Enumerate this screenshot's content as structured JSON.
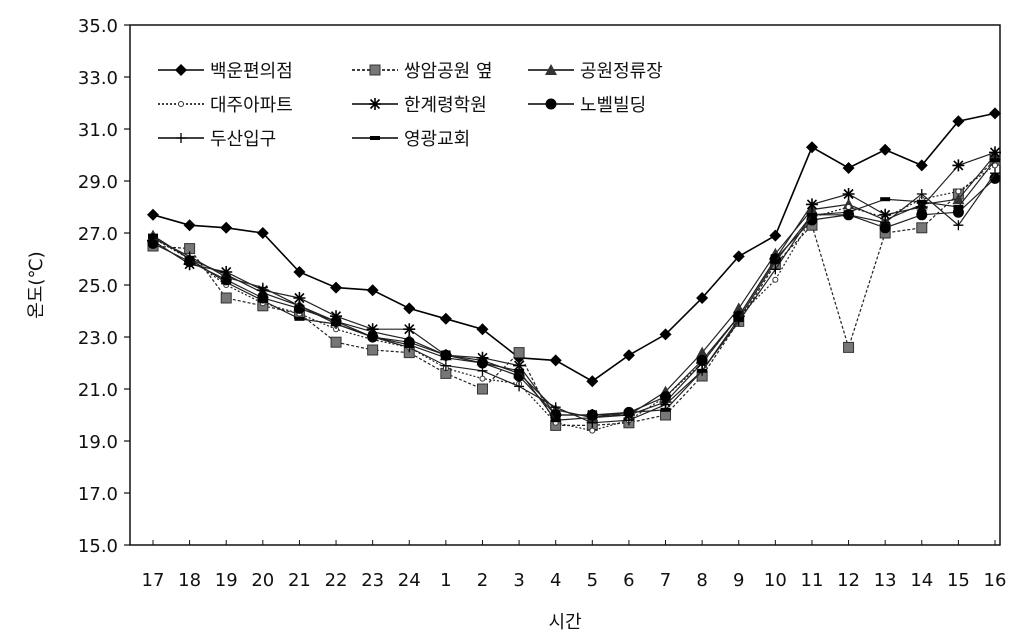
{
  "chart_data": {
    "type": "line",
    "xlabel": "시간",
    "ylabel": "온도(℃)",
    "ylim": [
      15.0,
      35.0
    ],
    "yticks": [
      "15.0",
      "17.0",
      "19.0",
      "21.0",
      "23.0",
      "25.0",
      "27.0",
      "29.0",
      "31.0",
      "33.0",
      "35.0"
    ],
    "categories": [
      "17",
      "18",
      "19",
      "20",
      "21",
      "22",
      "23",
      "24",
      "1",
      "2",
      "3",
      "4",
      "5",
      "6",
      "7",
      "8",
      "9",
      "10",
      "11",
      "12",
      "13",
      "14",
      "15",
      "16"
    ],
    "grid": false,
    "legend_position": "top-left",
    "series": [
      {
        "name": "백운편의점",
        "marker": "diamond",
        "dash": "",
        "values": [
          27.7,
          27.3,
          27.2,
          27.0,
          25.5,
          24.9,
          24.8,
          24.1,
          23.7,
          23.3,
          22.2,
          22.1,
          21.3,
          22.3,
          23.1,
          24.5,
          26.1,
          26.9,
          30.3,
          29.5,
          30.2,
          29.6,
          31.3,
          31.6
        ]
      },
      {
        "name": "쌍암공원 옆",
        "marker": "square",
        "dash": "3,2",
        "values": [
          26.5,
          26.4,
          24.5,
          24.2,
          23.9,
          22.8,
          22.5,
          22.4,
          21.6,
          21.0,
          22.4,
          19.6,
          19.6,
          19.7,
          20.0,
          21.5,
          23.6,
          25.8,
          27.3,
          22.6,
          27.0,
          27.2,
          28.5,
          29.8
        ]
      },
      {
        "name": "공원정류장",
        "marker": "triangle",
        "dash": "",
        "values": [
          26.9,
          26.0,
          25.4,
          24.7,
          24.2,
          23.6,
          23.2,
          22.9,
          22.3,
          22.1,
          21.6,
          20.2,
          19.9,
          20.0,
          20.9,
          22.4,
          24.1,
          26.2,
          27.9,
          28.1,
          27.5,
          28.1,
          28.3,
          30.0
        ]
      },
      {
        "name": "대주아파트",
        "marker": "dot",
        "dash": "2,2",
        "values": [
          26.8,
          26.0,
          25.0,
          24.3,
          23.9,
          23.3,
          22.9,
          22.6,
          21.8,
          21.4,
          21.2,
          19.7,
          19.4,
          19.8,
          20.7,
          22.0,
          23.8,
          25.2,
          27.6,
          28.0,
          27.6,
          28.3,
          28.6,
          29.6
        ]
      },
      {
        "name": "한계령학원",
        "marker": "star",
        "dash": "",
        "values": [
          26.7,
          25.8,
          25.5,
          24.8,
          24.5,
          23.8,
          23.3,
          23.3,
          22.3,
          22.2,
          21.9,
          20.0,
          20.0,
          20.0,
          20.5,
          22.0,
          23.8,
          26.0,
          28.1,
          28.5,
          27.7,
          28.0,
          29.6,
          30.1
        ]
      },
      {
        "name": "노벨빌딩",
        "marker": "circle",
        "dash": "",
        "values": [
          26.6,
          25.9,
          25.2,
          24.5,
          24.1,
          23.6,
          23.0,
          22.8,
          22.3,
          22.0,
          21.5,
          20.0,
          20.0,
          20.1,
          20.7,
          22.1,
          23.8,
          26.0,
          27.5,
          27.7,
          27.2,
          27.7,
          27.8,
          29.1
        ]
      },
      {
        "name": "두산입구",
        "marker": "plus",
        "dash": "",
        "values": [
          26.8,
          26.1,
          25.3,
          24.9,
          24.2,
          23.5,
          23.0,
          22.6,
          21.9,
          21.7,
          21.1,
          20.3,
          19.7,
          19.8,
          20.4,
          21.7,
          23.6,
          25.6,
          27.7,
          27.7,
          27.4,
          28.5,
          27.3,
          29.3
        ]
      },
      {
        "name": "영광교회",
        "marker": "dash",
        "dash": "",
        "values": [
          26.9,
          26.0,
          25.1,
          24.4,
          23.7,
          23.5,
          23.0,
          22.7,
          22.2,
          22.0,
          21.7,
          19.8,
          19.9,
          20.1,
          20.2,
          21.7,
          23.7,
          25.9,
          27.7,
          27.8,
          28.3,
          28.2,
          28.0,
          29.8
        ]
      }
    ]
  }
}
